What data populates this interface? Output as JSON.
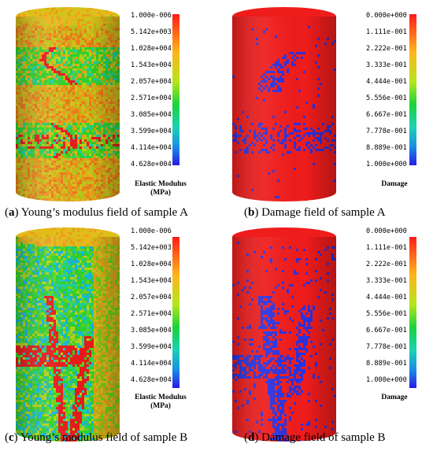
{
  "panels": [
    {
      "id": "a",
      "caption_letter": "a",
      "caption_text": "Young’s modulus field of sample A",
      "colorbar_labels": [
        "1.000e-006",
        "5.142e+003",
        "1.028e+004",
        "1.543e+004",
        "2.057e+004",
        "2.571e+004",
        "3.085e+004",
        "3.599e+004",
        "4.114e+004",
        "4.628e+004"
      ],
      "colorbar_title": [
        "Elastic Modulus",
        "(MPa)"
      ]
    },
    {
      "id": "b",
      "caption_letter": "b",
      "caption_text": "Damage field of sample A",
      "colorbar_labels": [
        "0.000e+000",
        "1.111e-001",
        "2.222e-001",
        "3.333e-001",
        "4.444e-001",
        "5.556e-001",
        "6.667e-001",
        "7.778e-001",
        "8.889e-001",
        "1.000e+000"
      ],
      "colorbar_title": [
        "Damage"
      ]
    },
    {
      "id": "c",
      "caption_letter": "c",
      "caption_text": "Young’s modulus field of sample B",
      "colorbar_labels": [
        "1.000e-006",
        "5.142e+003",
        "1.028e+004",
        "1.543e+004",
        "2.057e+004",
        "2.571e+004",
        "3.085e+004",
        "3.599e+004",
        "4.114e+004",
        "4.628e+004"
      ],
      "colorbar_title": [
        "Elastic Modulus",
        "(MPa)"
      ]
    },
    {
      "id": "d",
      "caption_letter": "d",
      "caption_text": "Damage field of sample B",
      "colorbar_labels": [
        "0.000e+000",
        "1.111e-001",
        "2.222e-001",
        "3.333e-001",
        "4.444e-001",
        "5.556e-001",
        "6.667e-001",
        "7.778e-001",
        "8.889e-001",
        "1.000e+000"
      ],
      "colorbar_title": [
        "Damage"
      ]
    }
  ],
  "colors": {
    "colormap": [
      "#ff2a1a",
      "#ff8c1a",
      "#ffd21a",
      "#c8e61a",
      "#2ed12e",
      "#1ad1a0",
      "#1ab0e6",
      "#1a5ae6",
      "#2a1ae6"
    ],
    "damage_red": "#ef1c1c",
    "damage_blue": "#2a32e0"
  }
}
